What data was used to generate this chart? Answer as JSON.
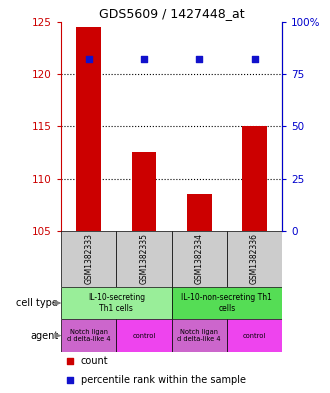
{
  "title": "GDS5609 / 1427448_at",
  "samples": [
    "GSM1382333",
    "GSM1382335",
    "GSM1382334",
    "GSM1382336"
  ],
  "bar_values": [
    124.5,
    112.5,
    108.5,
    115.0
  ],
  "bar_base": 105,
  "scatter_percentiles": [
    82,
    82,
    82,
    82
  ],
  "ylim": [
    105,
    125
  ],
  "yticks_left": [
    105,
    110,
    115,
    120,
    125
  ],
  "yticks_right": [
    0,
    25,
    50,
    75,
    100
  ],
  "right_ylim": [
    0,
    100
  ],
  "bar_color": "#cc0000",
  "scatter_color": "#1111cc",
  "cell_type_rows": [
    {
      "label": "IL-10-secreting\nTh1 cells",
      "color": "#99ee99",
      "span": [
        0,
        2
      ]
    },
    {
      "label": "IL-10-non-secreting Th1\ncells",
      "color": "#55dd55",
      "span": [
        2,
        4
      ]
    }
  ],
  "agent_rows": [
    {
      "label": "Notch ligan\nd delta-like 4",
      "color": "#cc66cc",
      "span": [
        0,
        1
      ]
    },
    {
      "label": "control",
      "color": "#ee44ee",
      "span": [
        1,
        2
      ]
    },
    {
      "label": "Notch ligan\nd delta-like 4",
      "color": "#cc66cc",
      "span": [
        2,
        3
      ]
    },
    {
      "label": "control",
      "color": "#ee44ee",
      "span": [
        3,
        4
      ]
    }
  ],
  "sample_row_color": "#cccccc",
  "left_tick_color": "#cc0000",
  "right_tick_color": "#0000cc",
  "dotted_yticks": [
    110,
    115,
    120
  ],
  "cell_type_label": "cell type",
  "agent_label": "agent"
}
